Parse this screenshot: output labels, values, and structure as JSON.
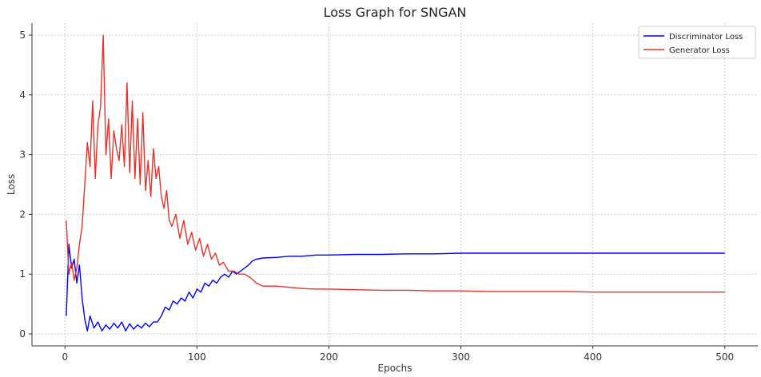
{
  "chart_data": {
    "type": "line",
    "title": "Loss Graph for SNGAN",
    "xlabel": "Epochs",
    "ylabel": "Loss",
    "xlim": [
      -25,
      525
    ],
    "ylim": [
      -0.2,
      5.2
    ],
    "xticks": [
      0,
      100,
      200,
      300,
      400,
      500
    ],
    "yticks": [
      0,
      1,
      2,
      3,
      4,
      5
    ],
    "grid": true,
    "legend_position": "top-right",
    "series": [
      {
        "name": "Discriminator Loss",
        "color": "#0000ff",
        "x": [
          1,
          3,
          5,
          7,
          9,
          11,
          13,
          15,
          17,
          19,
          22,
          25,
          28,
          31,
          34,
          37,
          40,
          43,
          46,
          49,
          52,
          55,
          58,
          61,
          64,
          67,
          70,
          73,
          76,
          79,
          82,
          85,
          88,
          91,
          94,
          97,
          100,
          103,
          106,
          109,
          112,
          115,
          118,
          121,
          124,
          127,
          130,
          133,
          136,
          139,
          142,
          145,
          150,
          160,
          170,
          180,
          190,
          200,
          220,
          240,
          260,
          280,
          300,
          320,
          340,
          360,
          380,
          400,
          420,
          440,
          460,
          480,
          500
        ],
        "values": [
          0.3,
          1.5,
          1.1,
          1.25,
          0.85,
          1.15,
          0.6,
          0.25,
          0.05,
          0.3,
          0.1,
          0.2,
          0.05,
          0.15,
          0.08,
          0.18,
          0.1,
          0.2,
          0.05,
          0.17,
          0.08,
          0.15,
          0.1,
          0.18,
          0.12,
          0.2,
          0.2,
          0.3,
          0.45,
          0.4,
          0.55,
          0.5,
          0.6,
          0.55,
          0.7,
          0.6,
          0.75,
          0.7,
          0.85,
          0.8,
          0.9,
          0.85,
          0.95,
          1.0,
          0.95,
          1.05,
          1.0,
          1.05,
          1.1,
          1.15,
          1.22,
          1.25,
          1.27,
          1.28,
          1.3,
          1.3,
          1.32,
          1.32,
          1.33,
          1.33,
          1.34,
          1.34,
          1.35,
          1.35,
          1.35,
          1.35,
          1.35,
          1.35,
          1.35,
          1.35,
          1.35,
          1.35,
          1.35
        ]
      },
      {
        "name": "Generator Loss",
        "color": "#e8312a",
        "x": [
          1,
          3,
          5,
          7,
          9,
          11,
          13,
          15,
          17,
          19,
          21,
          23,
          25,
          27,
          29,
          31,
          33,
          35,
          37,
          39,
          41,
          43,
          45,
          47,
          49,
          51,
          53,
          55,
          57,
          59,
          61,
          63,
          65,
          67,
          69,
          71,
          73,
          75,
          77,
          79,
          81,
          84,
          87,
          90,
          93,
          96,
          99,
          102,
          105,
          108,
          111,
          114,
          117,
          120,
          124,
          128,
          132,
          136,
          140,
          145,
          150,
          160,
          170,
          180,
          190,
          200,
          220,
          240,
          260,
          280,
          300,
          320,
          340,
          360,
          380,
          400,
          420,
          440,
          460,
          480,
          500
        ],
        "values": [
          1.9,
          1.0,
          1.2,
          0.9,
          1.1,
          1.5,
          1.8,
          2.5,
          3.2,
          2.8,
          3.9,
          2.6,
          3.5,
          3.8,
          5.0,
          3.0,
          3.6,
          2.6,
          3.4,
          3.1,
          2.9,
          3.5,
          2.8,
          4.2,
          2.7,
          3.9,
          2.6,
          3.6,
          2.5,
          3.7,
          2.4,
          2.9,
          2.3,
          3.1,
          2.6,
          2.8,
          2.3,
          2.1,
          2.4,
          1.9,
          1.8,
          2.0,
          1.6,
          1.9,
          1.5,
          1.7,
          1.4,
          1.6,
          1.3,
          1.5,
          1.25,
          1.35,
          1.15,
          1.2,
          1.05,
          1.05,
          1.0,
          1.0,
          0.95,
          0.85,
          0.8,
          0.8,
          0.78,
          0.76,
          0.75,
          0.75,
          0.74,
          0.73,
          0.73,
          0.72,
          0.72,
          0.71,
          0.71,
          0.71,
          0.71,
          0.7,
          0.7,
          0.7,
          0.7,
          0.7,
          0.7
        ]
      }
    ]
  }
}
